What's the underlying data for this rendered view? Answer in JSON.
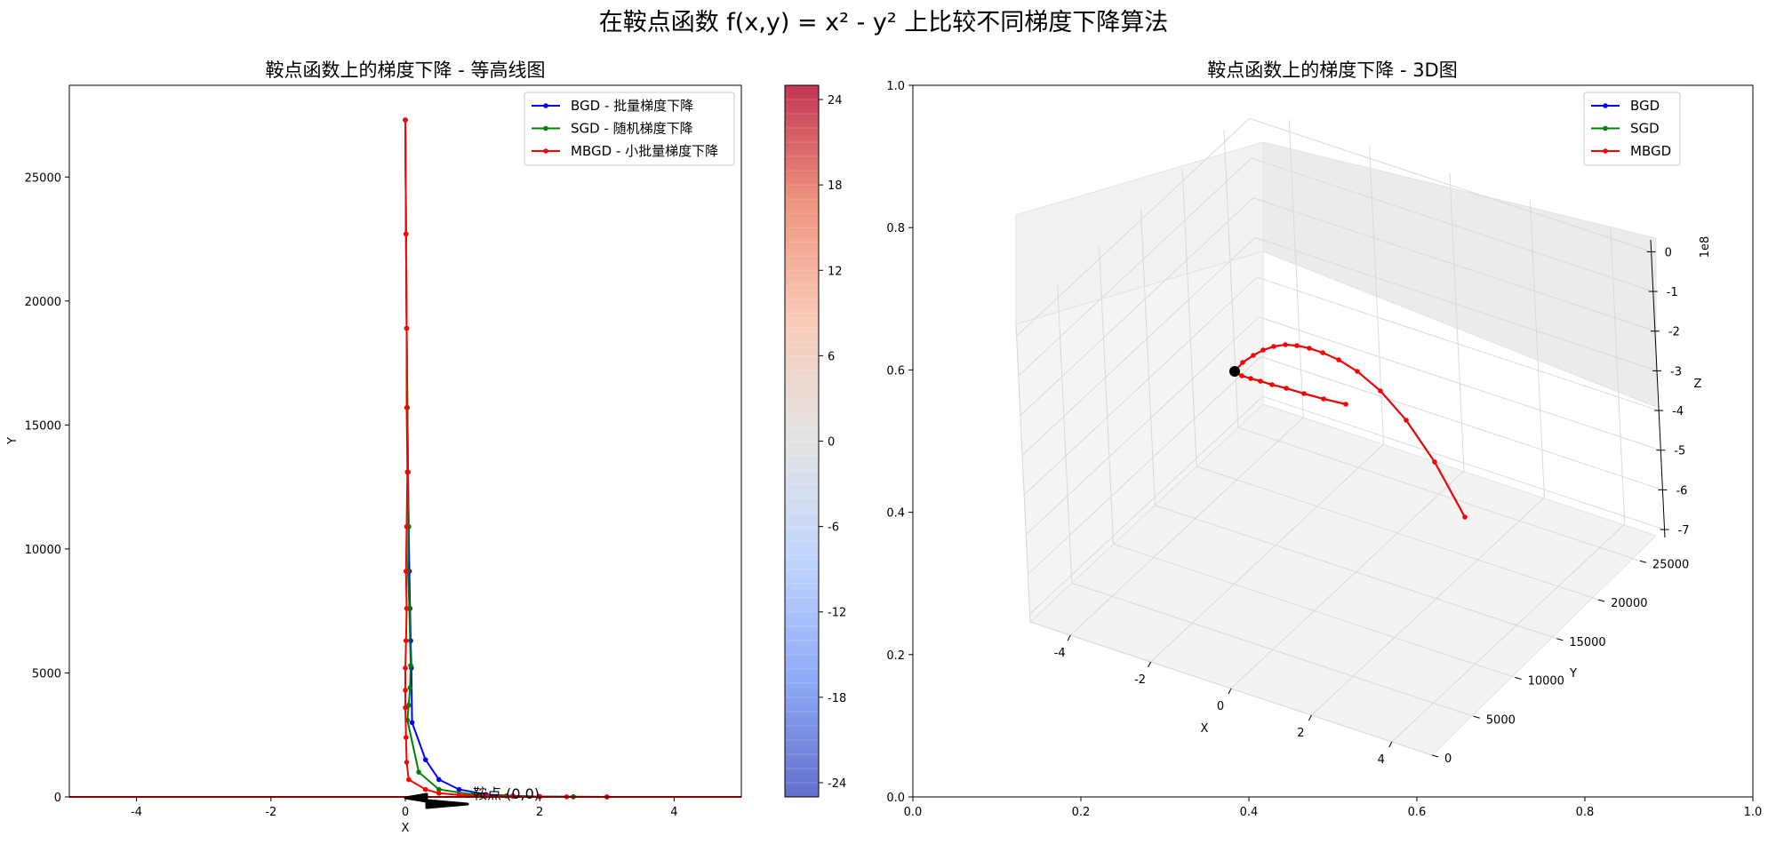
{
  "figure": {
    "suptitle": "在鞍点函数 f(x,y) = x² - y² 上比较不同梯度下降算法"
  },
  "colors": {
    "bgd": "#0000ff",
    "sgd": "#008000",
    "mbgd": "#ff0000",
    "colormap": [
      "#3b4cc0",
      "#7396f5",
      "#b0cbfc",
      "#dcdddd",
      "#f6bfa6",
      "#ea7b60",
      "#b40426"
    ]
  },
  "chart_data": [
    {
      "type": "line",
      "title": "鞍点函数上的梯度下降 - 等高线图",
      "xlabel": "X",
      "ylabel": "Y",
      "xlim": [
        -5,
        5
      ],
      "ylim": [
        0,
        28700
      ],
      "xticks": [
        -4,
        -2,
        0,
        2,
        4
      ],
      "yticks": [
        0,
        5000,
        10000,
        15000,
        20000,
        25000
      ],
      "legend_position": "upper right",
      "series": [
        {
          "name": "BGD - 批量梯度下降",
          "key": "bgd",
          "x": [
            0.0,
            0.01,
            0.02,
            0.03,
            0.04,
            0.05,
            0.06,
            0.07,
            0.08,
            0.09,
            0.1,
            0.3,
            0.5,
            0.8,
            1.2,
            1.6,
            2.0,
            2.5,
            3.0
          ],
          "y": [
            27300,
            22700,
            18900,
            15700,
            13100,
            10900,
            9100,
            7600,
            6300,
            5200,
            3000,
            1500,
            700,
            300,
            100,
            40,
            15,
            5,
            0
          ]
        },
        {
          "name": "SGD - 随机梯度下降",
          "key": "sgd",
          "x": [
            0.0,
            0.01,
            0.02,
            0.03,
            0.04,
            0.05,
            0.04,
            0.06,
            0.08,
            0.07,
            0.05,
            0.03,
            0.2,
            0.5,
            1.0,
            1.5,
            2.0,
            2.5,
            3.0
          ],
          "y": [
            27300,
            22700,
            18900,
            15700,
            13100,
            10900,
            9100,
            7600,
            5300,
            4400,
            3700,
            3100,
            1000,
            300,
            100,
            40,
            15,
            5,
            0
          ]
        },
        {
          "name": "MBGD - 小批量梯度下降",
          "key": "mbgd",
          "x": [
            0.0,
            0.01,
            0.02,
            0.02,
            0.03,
            0.02,
            0.01,
            0.02,
            0.01,
            0.0,
            0.0,
            0.0,
            0.01,
            0.02,
            0.05,
            0.3,
            0.5,
            0.8,
            1.2,
            1.6,
            2.0,
            2.4,
            3.0
          ],
          "y": [
            27300,
            22700,
            18900,
            15700,
            13100,
            10900,
            9100,
            7600,
            6300,
            5200,
            4300,
            3600,
            2400,
            1400,
            700,
            300,
            150,
            80,
            40,
            20,
            10,
            5,
            0
          ]
        }
      ],
      "annotation": {
        "text": "鞍点 (0,0)",
        "x": 0,
        "y": 0
      },
      "colorbar": {
        "ticks": [
          24,
          18,
          12,
          6,
          0,
          -6,
          -12,
          -18,
          -24
        ],
        "range": [
          -25,
          25
        ]
      }
    },
    {
      "type": "line",
      "title": "鞍点函数上的梯度下降 - 3D图",
      "xlabel": "X",
      "ylabel": "Y",
      "zlabel": "Z",
      "z_offset_label": "1e8",
      "xticks": [
        -4,
        -2,
        0,
        2,
        4
      ],
      "yticks": [
        0,
        5000,
        10000,
        15000,
        20000,
        25000
      ],
      "zticks": [
        0,
        -1,
        -2,
        -3,
        -4,
        -5,
        -6,
        -7
      ],
      "frame_xticks": [
        "0.0",
        "0.2",
        "0.4",
        "0.6",
        "0.8",
        "1.0"
      ],
      "frame_yticks": [
        "0.0",
        "0.2",
        "0.4",
        "0.6",
        "0.8",
        "1.0"
      ],
      "legend_position": "upper right",
      "series": [
        {
          "name": "BGD",
          "key": "bgd"
        },
        {
          "name": "SGD",
          "key": "sgd"
        },
        {
          "name": "MBGD",
          "key": "mbgd"
        }
      ]
    }
  ]
}
